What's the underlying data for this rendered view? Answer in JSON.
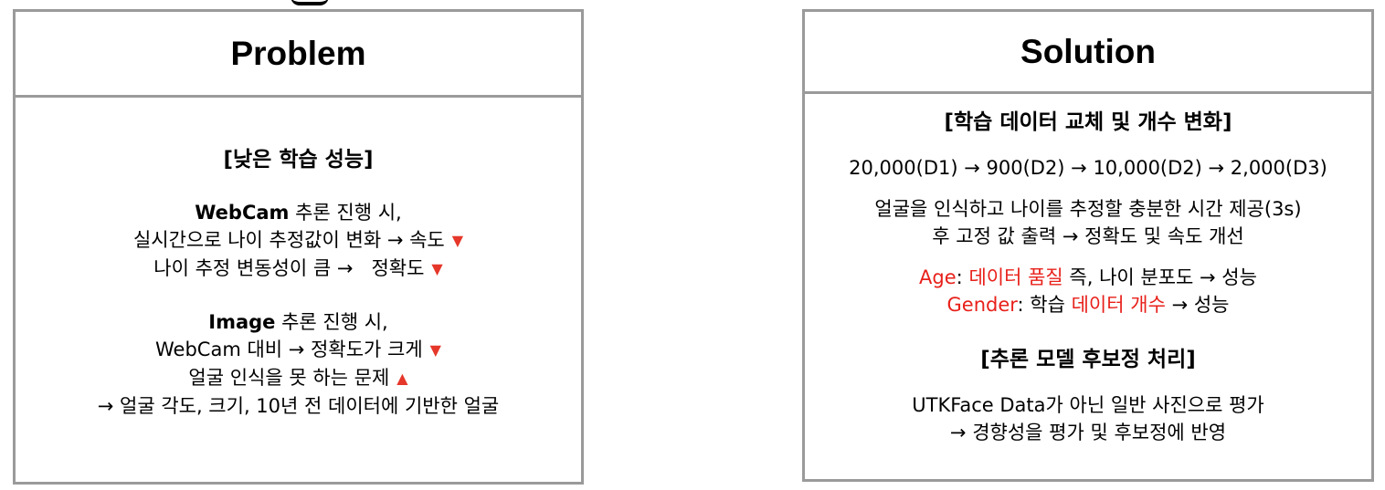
{
  "problem": {
    "title": "Problem",
    "heading": "[낮은 학습 성능]",
    "webcam": {
      "bold": "WebCam",
      "rest": " 추론 진행 시,",
      "line2": "실시간으로 나이 추정값이 변화 → 속도",
      "line3": "나이 추정 변동성이 큼 →   정확도"
    },
    "image": {
      "bold": "Image",
      "rest": " 추론 진행 시,",
      "line2": "WebCam 대비 → 정확도가 크게",
      "line3": "얼굴 인식을 못 하는 문제",
      "line4": "→ 얼굴 각도, 크기, 10년 전 데이터에 기반한 얼굴"
    },
    "icons": {
      "down": "▼",
      "up": "▲",
      "color": "#e5372a"
    }
  },
  "solution": {
    "title": "Solution",
    "heading1": "[학습 데이터 교체 및 개수 변화]",
    "flow": "20,000(D1) → 900(D2) → 10,000(D2) → 2,000(D3)",
    "desc1": "얼굴을 인식하고 나이를 추정할 충분한 시간 제공(3s)",
    "desc2": "후 고정 값 출력 → 정확도 및 속도 개선",
    "age": {
      "label": "Age",
      "colon": ": ",
      "highlight": "데이터 품질",
      "rest": " 즉, 나이 분포도 → 성능"
    },
    "gender": {
      "label": "Gender",
      "colon": ": 학습 ",
      "highlight": "데이터 개수",
      "rest": " → 성능"
    },
    "heading2": "[추론 모델 후보정 처리]",
    "eval1": "UTKFace Data가 아닌 일반 사진으로 평가",
    "eval2": "→ 경향성을 평가 및 후보정에 반영"
  },
  "colors": {
    "border": "#9a9a9a",
    "highlight": "#e8201a"
  }
}
